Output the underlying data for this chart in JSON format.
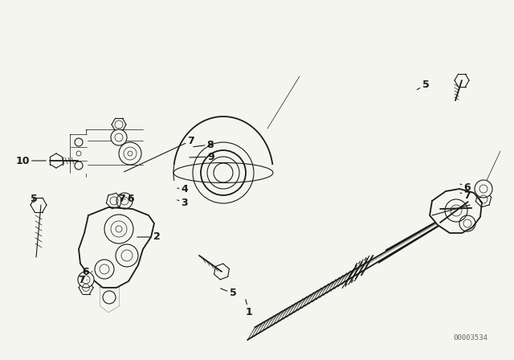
{
  "background_color": "#f5f5f0",
  "line_color": "#1a1a1a",
  "watermark": "00003534",
  "figsize": [
    6.4,
    4.48
  ],
  "dpi": 100,
  "labels": [
    [
      "1",
      310,
      388,
      305,
      370
    ],
    [
      "2",
      195,
      295,
      168,
      295
    ],
    [
      "3",
      230,
      252,
      218,
      248
    ],
    [
      "4",
      230,
      235,
      218,
      234
    ],
    [
      "5",
      42,
      247,
      42,
      255
    ],
    [
      "5",
      290,
      365,
      272,
      358
    ],
    [
      "5",
      530,
      105,
      517,
      113
    ],
    [
      "6",
      163,
      247,
      155,
      248
    ],
    [
      "6",
      107,
      339,
      115,
      338
    ],
    [
      "6",
      582,
      233,
      573,
      229
    ],
    [
      "7",
      152,
      247,
      148,
      249
    ],
    [
      "7",
      101,
      349,
      111,
      348
    ],
    [
      "7",
      238,
      175,
      152,
      215
    ],
    [
      "7",
      582,
      243,
      573,
      240
    ],
    [
      "8",
      262,
      180,
      238,
      183
    ],
    [
      "9",
      263,
      195,
      233,
      196
    ],
    [
      "10",
      28,
      200,
      60,
      200
    ]
  ]
}
